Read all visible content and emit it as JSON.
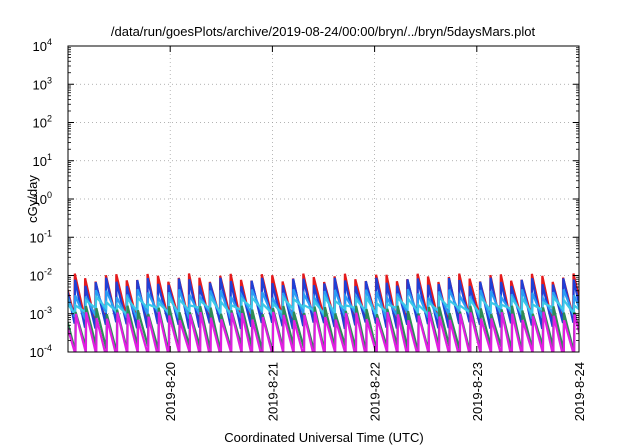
{
  "chart_data": {
    "type": "line",
    "title": "/data/run/goesPlots/archive/2019-08-24/00:00/bryn/../bryn/5daysMars.plot",
    "xlabel": "Coordinated Universal Time (UTC)",
    "ylabel": "cGy/day",
    "yscale": "log",
    "ylim": [
      0.0001,
      10000
    ],
    "xlim": [
      "2019-08-19T00:00",
      "2019-08-24T00:00"
    ],
    "x_ticks": [
      "2019-8-20",
      "2019-8-21",
      "2019-8-22",
      "2019-8-23",
      "2019-8-24"
    ],
    "y_ticks": [
      {
        "base": "10",
        "exp": "-4"
      },
      {
        "base": "10",
        "exp": "-3"
      },
      {
        "base": "10",
        "exp": "-2"
      },
      {
        "base": "10",
        "exp": "-1"
      },
      {
        "base": "10",
        "exp": "0"
      },
      {
        "base": "10",
        "exp": "1"
      },
      {
        "base": "10",
        "exp": "2"
      },
      {
        "base": "10",
        "exp": "3"
      },
      {
        "base": "10",
        "exp": "4"
      }
    ],
    "grid": true,
    "sawtooth_period_hours": 2.44,
    "series": [
      {
        "color": "#e41a1c",
        "peak": 0.009,
        "trough": 0.0007
      },
      {
        "color": "#1f3fd6",
        "peak": 0.007,
        "trough": 0.0005
      },
      {
        "color": "#2a9df4",
        "peak": 0.0035,
        "trough": 0.0009
      },
      {
        "color": "#3cc8e8",
        "peak": 0.0022,
        "trough": 0.0012
      },
      {
        "color": "#2e8b57",
        "peak": 0.0013,
        "trough": 0.00012
      },
      {
        "color": "#e01ee0",
        "peak": 0.0009,
        "trough": 8e-05
      }
    ]
  }
}
